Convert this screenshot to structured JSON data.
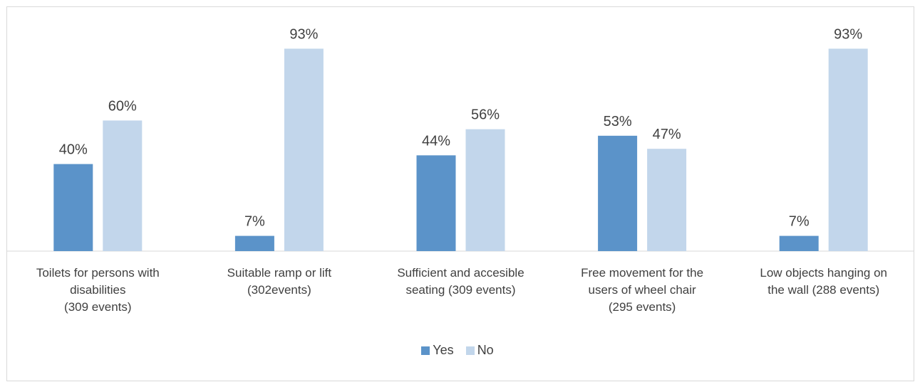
{
  "chart_data": {
    "type": "bar",
    "title": "",
    "xlabel": "",
    "ylabel": "",
    "ylim": [
      0,
      100
    ],
    "grid": false,
    "legend_position": "bottom",
    "categories": [
      [
        "Toilets for persons with",
        "disabilities",
        "(309 events)"
      ],
      [
        "Suitable ramp or lift",
        "(302events)"
      ],
      [
        "Sufficient and accesible",
        "seating (309 events)"
      ],
      [
        "Free movement for the",
        "users of wheel chair",
        "(295 events)"
      ],
      [
        "Low objects hanging on",
        "the wall (288 events)"
      ]
    ],
    "series": [
      {
        "name": "Yes",
        "color": "#5b93c9",
        "values": [
          40,
          7,
          44,
          53,
          7
        ],
        "labels": [
          "40%",
          "7%",
          "44%",
          "53%",
          "7%"
        ]
      },
      {
        "name": "No",
        "color": "#c2d6eb",
        "values": [
          60,
          93,
          56,
          47,
          93
        ],
        "labels": [
          "60%",
          "93%",
          "56%",
          "47%",
          "93%"
        ]
      }
    ]
  }
}
